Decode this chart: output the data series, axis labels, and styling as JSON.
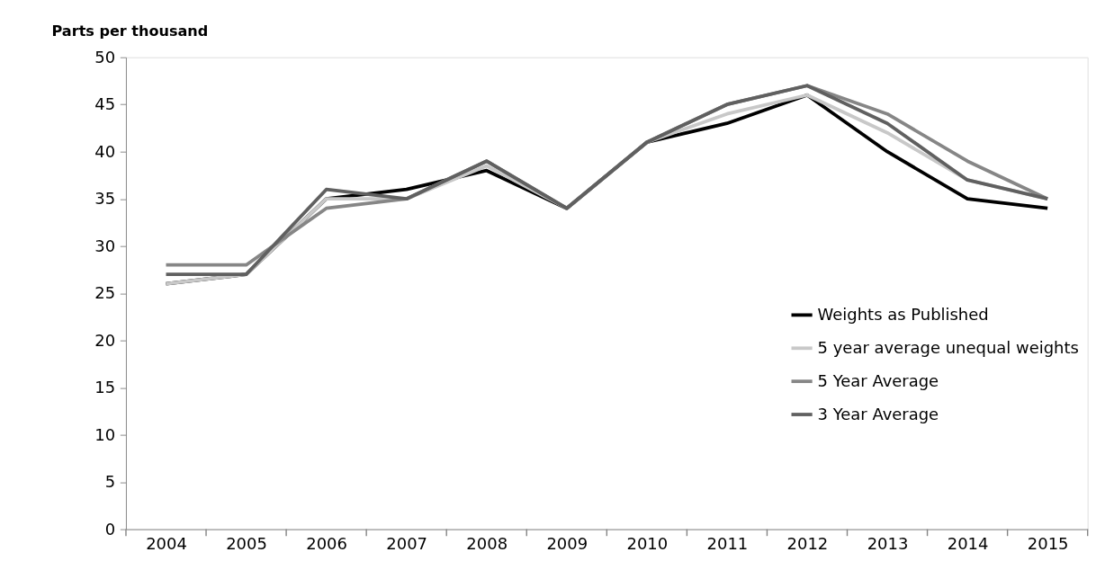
{
  "chart_data": {
    "type": "line",
    "ylabel": "Parts per thousand",
    "categories": [
      "2004",
      "2005",
      "2006",
      "2007",
      "2008",
      "2009",
      "2010",
      "2011",
      "2012",
      "2013",
      "2014",
      "2015"
    ],
    "series": [
      {
        "name": "Weights as Published",
        "color": "#000000",
        "values": [
          26,
          27,
          35,
          36,
          38,
          34,
          41,
          43,
          46,
          40,
          35,
          34
        ]
      },
      {
        "name": "5 year average unequal weights",
        "color": "#c8c8c8",
        "values": [
          26,
          27,
          35,
          35,
          38.5,
          34,
          41,
          44,
          46,
          42,
          37,
          35
        ]
      },
      {
        "name": "5 Year Average",
        "color": "#868686",
        "values": [
          28,
          28,
          34,
          35,
          39,
          34,
          41,
          45,
          47,
          44,
          39,
          35
        ]
      },
      {
        "name": "3 Year Average",
        "color": "#606060",
        "values": [
          27,
          27,
          36,
          35,
          39,
          34,
          41,
          45,
          47,
          43,
          37,
          35
        ]
      }
    ],
    "ylim": [
      0,
      50
    ],
    "yticks": [
      0,
      5,
      10,
      15,
      20,
      25,
      30,
      35,
      40,
      45,
      50
    ],
    "grid": false,
    "legend": "bottom right",
    "marker": "none",
    "line_style": "solid"
  }
}
